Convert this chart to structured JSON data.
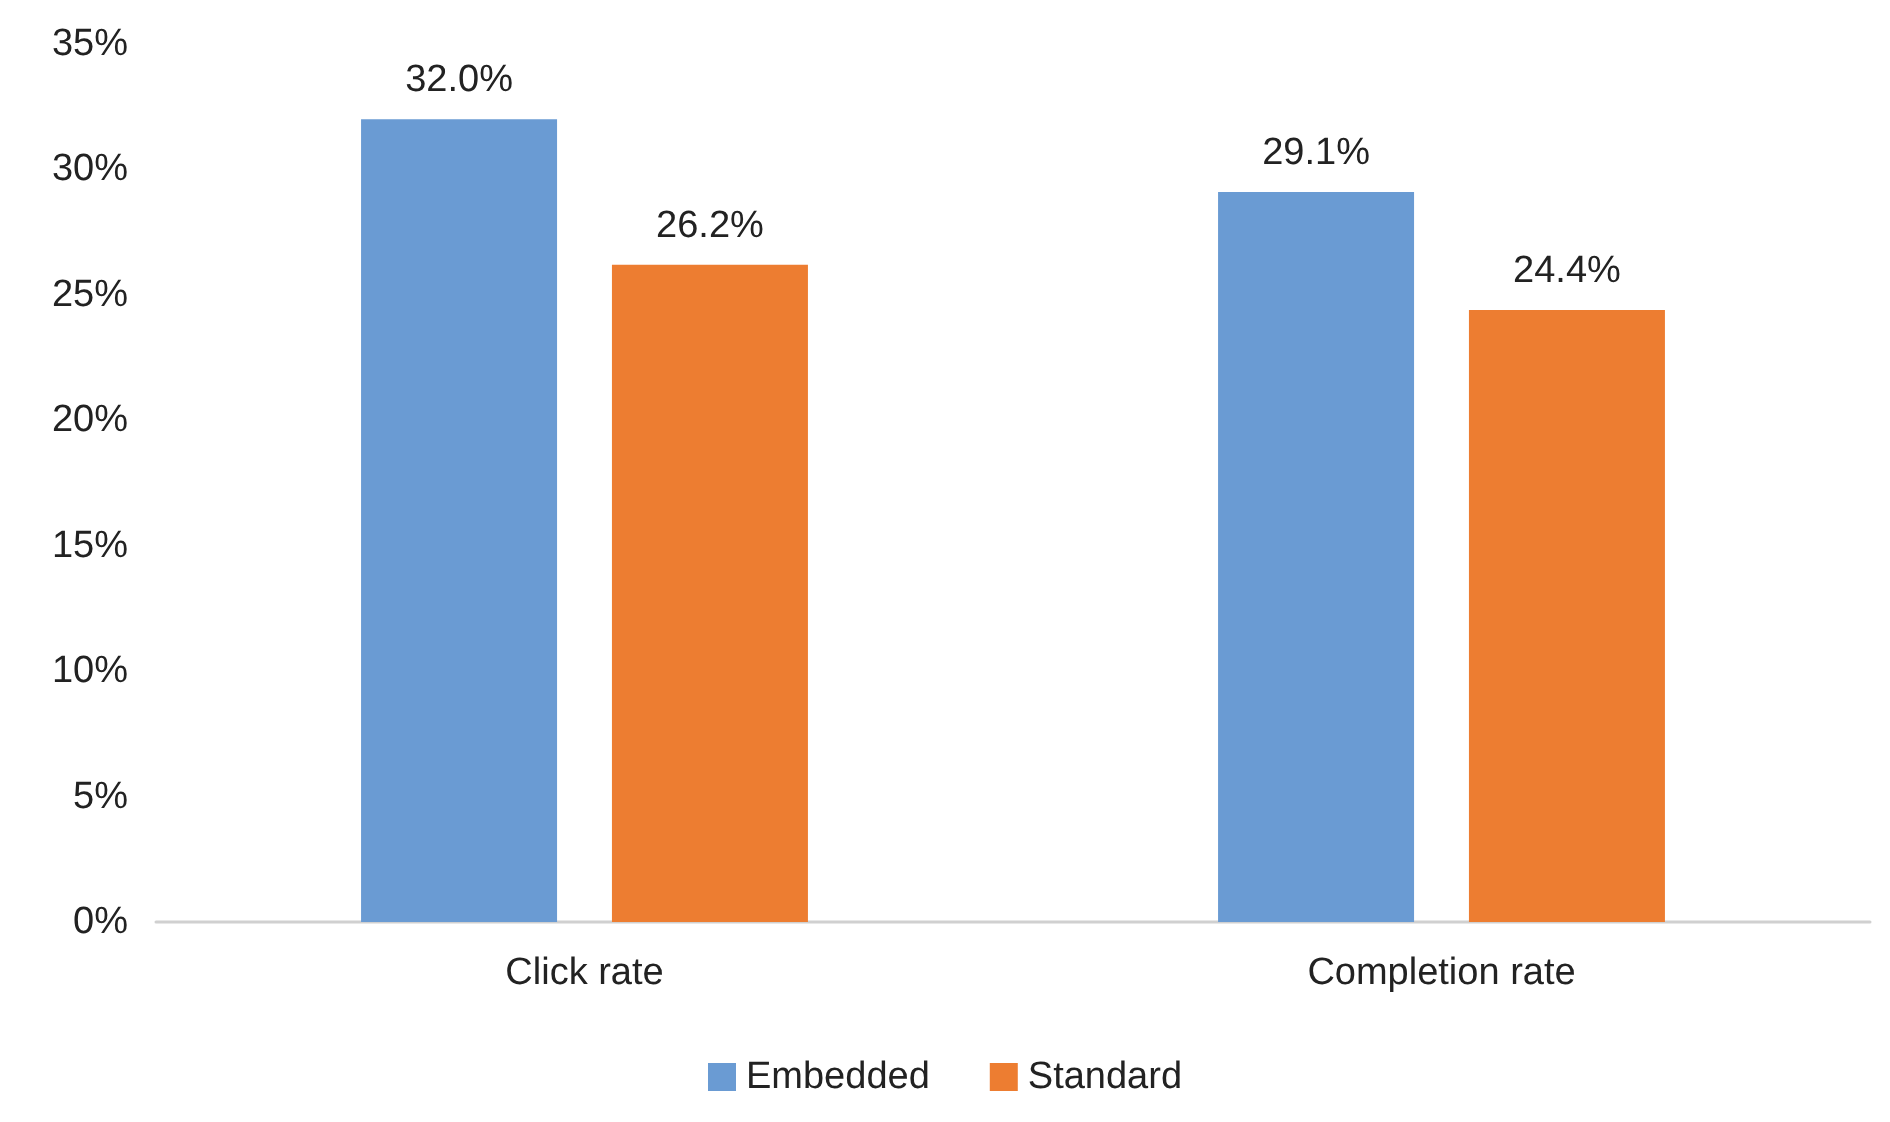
{
  "chart_data": {
    "type": "bar",
    "categories": [
      "Click rate",
      "Completion rate"
    ],
    "series": [
      {
        "name": "Embedded",
        "color": "#6a9bd3",
        "values": [
          32.0,
          29.1
        ],
        "value_labels": [
          "32.0%",
          "29.1%"
        ]
      },
      {
        "name": "Standard",
        "color": "#ed7d31",
        "values": [
          26.2,
          24.4
        ],
        "value_labels": [
          "26.2%",
          "24.4%"
        ]
      }
    ],
    "ylim": [
      0,
      35
    ],
    "yticks": [
      {
        "value": 0,
        "label": "0%"
      },
      {
        "value": 5,
        "label": "5%"
      },
      {
        "value": 10,
        "label": "10%"
      },
      {
        "value": 15,
        "label": "15%"
      },
      {
        "value": 20,
        "label": "20%"
      },
      {
        "value": 25,
        "label": "25%"
      },
      {
        "value": 30,
        "label": "30%"
      },
      {
        "value": 35,
        "label": "35%"
      }
    ],
    "grid": false,
    "legend": "bottom"
  }
}
